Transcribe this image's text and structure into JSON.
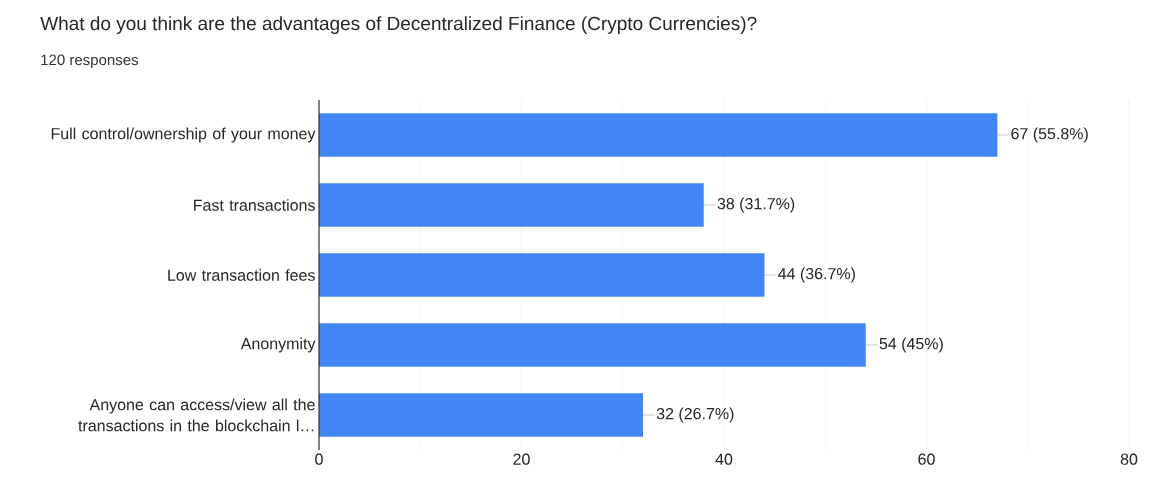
{
  "chart_data": {
    "type": "bar",
    "orientation": "horizontal",
    "title": "What do you think are the advantages of Decentralized Finance (Crypto Currencies)?",
    "subtitle": "120 responses",
    "categories": [
      "Full control/ownership of your money",
      "Fast transactions",
      "Low transaction fees",
      "Anonymity",
      "Anyone can access/view all the transactions in the blockchain l…"
    ],
    "values": [
      67,
      38,
      44,
      54,
      32
    ],
    "value_labels": [
      "67 (55.8%)",
      "38 (31.7%)",
      "44 (36.7%)",
      "54 (45%)",
      "32 (26.7%)"
    ],
    "color": "#4285f4",
    "xlim": [
      0,
      80
    ],
    "xticks": [
      0,
      20,
      40,
      60,
      80
    ],
    "grid": "x"
  }
}
